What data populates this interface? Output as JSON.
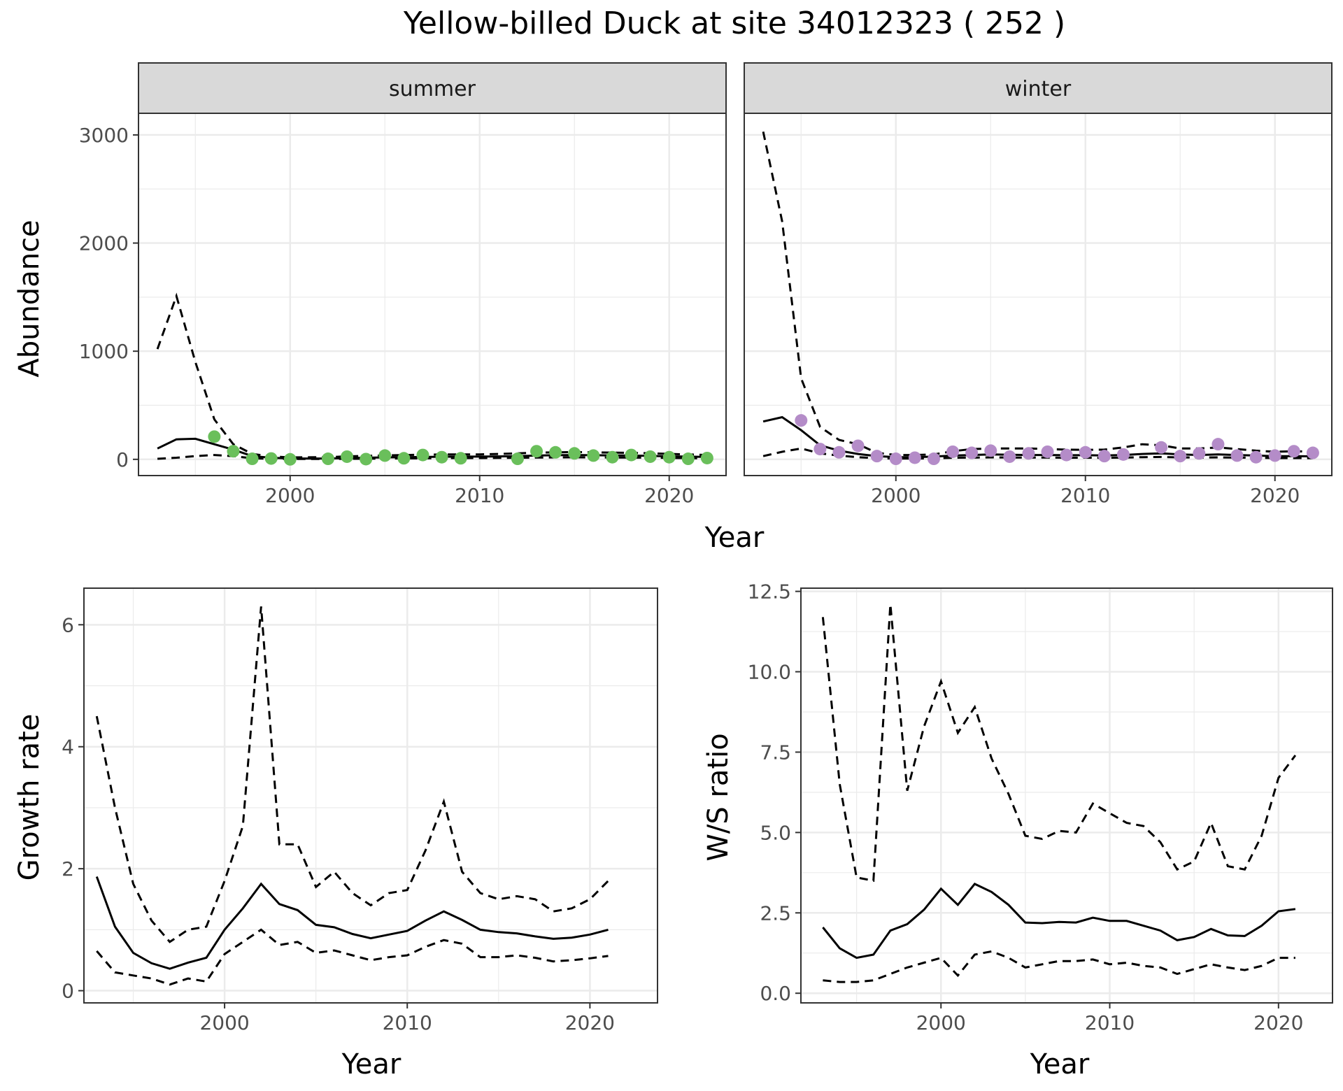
{
  "figure_title": "Yellow-billed Duck at site 34012323 ( 252 )",
  "colors": {
    "summer_points": "#6abf5b",
    "winter_points": "#b48cc8",
    "line": "#000000",
    "strip_fill": "#d9d9d9",
    "grid": "#ebebeb"
  },
  "chart_data": [
    {
      "id": "abundance-summer",
      "type": "line",
      "facet": "summer",
      "xlabel": "Year",
      "ylabel": "Abundance",
      "xlim": [
        1992,
        2023
      ],
      "ylim": [
        -150,
        3200
      ],
      "x_ticks": [
        2000,
        2010,
        2020
      ],
      "y_ticks": [
        0,
        1000,
        2000,
        3000
      ],
      "grid": true,
      "series": [
        {
          "role": "estimate",
          "style": "solid",
          "x": [
            1993,
            1994,
            1995,
            1996,
            1997,
            1998,
            1999,
            2000,
            2002,
            2003,
            2004,
            2005,
            2006,
            2007,
            2008,
            2009,
            2010,
            2011,
            2012,
            2013,
            2014,
            2015,
            2016,
            2017,
            2018,
            2019,
            2020,
            2021,
            2022
          ],
          "y": [
            100,
            185,
            190,
            140,
            90,
            30,
            15,
            8,
            8,
            12,
            15,
            18,
            20,
            22,
            24,
            25,
            25,
            27,
            30,
            35,
            38,
            40,
            38,
            36,
            35,
            32,
            28,
            25,
            22
          ]
        },
        {
          "role": "upper",
          "style": "dashed",
          "x": [
            1993,
            1994,
            1995,
            1996,
            1997,
            1998,
            1999,
            2000,
            2002,
            2003,
            2004,
            2005,
            2006,
            2007,
            2008,
            2009,
            2010,
            2011,
            2012,
            2013,
            2014,
            2015,
            2016,
            2017,
            2018,
            2019,
            2020,
            2021,
            2022
          ],
          "y": [
            1020,
            1510,
            900,
            370,
            140,
            50,
            28,
            18,
            20,
            28,
            32,
            36,
            40,
            42,
            45,
            46,
            46,
            50,
            55,
            62,
            65,
            68,
            65,
            62,
            60,
            56,
            50,
            45,
            40
          ]
        },
        {
          "role": "lower",
          "style": "dashed",
          "x": [
            1993,
            1994,
            1995,
            1996,
            1997,
            1998,
            1999,
            2000,
            2002,
            2003,
            2004,
            2005,
            2006,
            2007,
            2008,
            2009,
            2010,
            2011,
            2012,
            2013,
            2014,
            2015,
            2016,
            2017,
            2018,
            2019,
            2020,
            2021,
            2022
          ],
          "y": [
            5,
            15,
            30,
            40,
            30,
            10,
            5,
            3,
            3,
            5,
            6,
            8,
            9,
            10,
            11,
            12,
            12,
            13,
            14,
            16,
            18,
            19,
            18,
            17,
            16,
            15,
            13,
            11,
            10
          ]
        },
        {
          "role": "observed",
          "style": "points",
          "x": [
            1996,
            1997,
            1998,
            1999,
            2000,
            2002,
            2003,
            2004,
            2005,
            2006,
            2007,
            2008,
            2009,
            2012,
            2013,
            2014,
            2015,
            2016,
            2017,
            2018,
            2019,
            2020,
            2021,
            2022
          ],
          "y": [
            210,
            75,
            5,
            8,
            0,
            5,
            25,
            2,
            35,
            10,
            40,
            20,
            10,
            5,
            75,
            65,
            55,
            35,
            20,
            40,
            25,
            20,
            5,
            12
          ]
        }
      ]
    },
    {
      "id": "abundance-winter",
      "type": "line",
      "facet": "winter",
      "xlabel": "Year",
      "ylabel": "",
      "xlim": [
        1992,
        2023
      ],
      "ylim": [
        -150,
        3200
      ],
      "x_ticks": [
        2000,
        2010,
        2020
      ],
      "y_ticks": [
        0,
        1000,
        2000,
        3000
      ],
      "grid": true,
      "series": [
        {
          "role": "estimate",
          "style": "solid",
          "x": [
            1993,
            1994,
            1995,
            1996,
            1997,
            1998,
            1999,
            2000,
            2001,
            2002,
            2003,
            2004,
            2005,
            2006,
            2007,
            2008,
            2009,
            2010,
            2011,
            2012,
            2013,
            2014,
            2015,
            2016,
            2017,
            2018,
            2019,
            2020,
            2021,
            2022
          ],
          "y": [
            350,
            390,
            270,
            130,
            80,
            50,
            30,
            20,
            20,
            25,
            35,
            40,
            45,
            42,
            40,
            40,
            38,
            38,
            36,
            40,
            50,
            55,
            45,
            40,
            45,
            40,
            35,
            30,
            30,
            28
          ]
        },
        {
          "role": "upper",
          "style": "dashed",
          "x": [
            1993,
            1994,
            1995,
            1996,
            1997,
            1998,
            1999,
            2000,
            2001,
            2002,
            2003,
            2004,
            2005,
            2006,
            2007,
            2008,
            2009,
            2010,
            2011,
            2012,
            2013,
            2014,
            2015,
            2016,
            2017,
            2018,
            2019,
            2020,
            2021,
            2022
          ],
          "y": [
            3030,
            2200,
            750,
            300,
            180,
            140,
            60,
            40,
            40,
            45,
            75,
            95,
            100,
            100,
            100,
            95,
            90,
            88,
            90,
            110,
            140,
            130,
            100,
            100,
            110,
            95,
            80,
            70,
            75,
            70
          ]
        },
        {
          "role": "lower",
          "style": "dashed",
          "x": [
            1993,
            1994,
            1995,
            1996,
            1997,
            1998,
            1999,
            2000,
            2001,
            2002,
            2003,
            2004,
            2005,
            2006,
            2007,
            2008,
            2009,
            2010,
            2011,
            2012,
            2013,
            2014,
            2015,
            2016,
            2017,
            2018,
            2019,
            2020,
            2021,
            2022
          ],
          "y": [
            30,
            70,
            100,
            55,
            35,
            20,
            10,
            8,
            8,
            10,
            14,
            16,
            18,
            17,
            16,
            16,
            15,
            15,
            14,
            16,
            20,
            22,
            18,
            16,
            18,
            16,
            14,
            12,
            12,
            11
          ]
        },
        {
          "role": "observed",
          "style": "points",
          "x": [
            1995,
            1996,
            1997,
            1998,
            1999,
            2000,
            2001,
            2002,
            2003,
            2004,
            2005,
            2006,
            2007,
            2008,
            2009,
            2010,
            2011,
            2012,
            2014,
            2015,
            2016,
            2017,
            2018,
            2019,
            2020,
            2021,
            2022
          ],
          "y": [
            360,
            95,
            65,
            125,
            30,
            5,
            15,
            5,
            70,
            60,
            80,
            25,
            55,
            70,
            40,
            65,
            30,
            45,
            110,
            30,
            55,
            140,
            35,
            20,
            35,
            75,
            60
          ]
        }
      ]
    },
    {
      "id": "growth-rate",
      "type": "line",
      "xlabel": "Year",
      "ylabel": "Growth rate",
      "xlim": [
        1992.3,
        2023.7
      ],
      "ylim": [
        -0.2,
        6.6
      ],
      "x_ticks": [
        2000,
        2010,
        2020
      ],
      "y_ticks": [
        0,
        2,
        4,
        6
      ],
      "grid": true,
      "series": [
        {
          "role": "estimate",
          "style": "solid",
          "x": [
            1993,
            1994,
            1995,
            1996,
            1997,
            1998,
            1999,
            2000,
            2001,
            2002,
            2003,
            2004,
            2005,
            2006,
            2007,
            2008,
            2009,
            2010,
            2011,
            2012,
            2013,
            2014,
            2015,
            2016,
            2017,
            2018,
            2019,
            2020,
            2021
          ],
          "y": [
            1.87,
            1.05,
            0.62,
            0.45,
            0.36,
            0.46,
            0.54,
            1.0,
            1.35,
            1.75,
            1.42,
            1.32,
            1.08,
            1.04,
            0.93,
            0.86,
            0.92,
            0.98,
            1.15,
            1.3,
            1.16,
            1.0,
            0.96,
            0.94,
            0.89,
            0.85,
            0.87,
            0.92,
            1.0
          ]
        },
        {
          "role": "upper",
          "style": "dashed",
          "x": [
            1993,
            1994,
            1995,
            1996,
            1997,
            1998,
            1999,
            2000,
            2001,
            2002,
            2003,
            2004,
            2005,
            2006,
            2007,
            2008,
            2009,
            2010,
            2011,
            2012,
            2013,
            2014,
            2015,
            2016,
            2017,
            2018,
            2019,
            2020,
            2021
          ],
          "y": [
            4.5,
            3.0,
            1.75,
            1.15,
            0.8,
            1.0,
            1.05,
            1.8,
            2.7,
            6.3,
            2.4,
            2.4,
            1.7,
            1.95,
            1.6,
            1.4,
            1.6,
            1.65,
            2.3,
            3.1,
            1.95,
            1.6,
            1.5,
            1.55,
            1.5,
            1.3,
            1.35,
            1.5,
            1.8
          ]
        },
        {
          "role": "lower",
          "style": "dashed",
          "x": [
            1993,
            1994,
            1995,
            1996,
            1997,
            1998,
            1999,
            2000,
            2001,
            2002,
            2003,
            2004,
            2005,
            2006,
            2007,
            2008,
            2009,
            2010,
            2011,
            2012,
            2013,
            2014,
            2015,
            2016,
            2017,
            2018,
            2019,
            2020,
            2021
          ],
          "y": [
            0.65,
            0.3,
            0.25,
            0.2,
            0.1,
            0.2,
            0.15,
            0.6,
            0.8,
            1.0,
            0.75,
            0.8,
            0.62,
            0.66,
            0.58,
            0.5,
            0.55,
            0.58,
            0.72,
            0.83,
            0.77,
            0.55,
            0.55,
            0.58,
            0.54,
            0.48,
            0.5,
            0.53,
            0.57
          ]
        }
      ]
    },
    {
      "id": "ws-ratio",
      "type": "line",
      "xlabel": "Year",
      "ylabel": "W/S ratio",
      "xlim": [
        1991.7,
        2023.2
      ],
      "ylim": [
        -0.3,
        12.6
      ],
      "x_ticks": [
        2000,
        2010,
        2020
      ],
      "y_ticks": [
        0.0,
        2.5,
        5.0,
        7.5,
        10.0,
        12.5
      ],
      "y_tick_labels": [
        "0.0",
        "2.5",
        "5.0",
        "7.5",
        "10.0",
        "12.5"
      ],
      "grid": true,
      "series": [
        {
          "role": "estimate",
          "style": "solid",
          "x": [
            1993,
            1994,
            1995,
            1996,
            1997,
            1998,
            1999,
            2000,
            2001,
            2002,
            2003,
            2004,
            2005,
            2006,
            2007,
            2008,
            2009,
            2010,
            2011,
            2012,
            2013,
            2014,
            2015,
            2016,
            2017,
            2018,
            2019,
            2020,
            2021
          ],
          "y": [
            2.05,
            1.4,
            1.1,
            1.2,
            1.95,
            2.15,
            2.6,
            3.25,
            2.75,
            3.4,
            3.15,
            2.75,
            2.2,
            2.18,
            2.22,
            2.2,
            2.35,
            2.25,
            2.25,
            2.1,
            1.95,
            1.65,
            1.75,
            2.0,
            1.8,
            1.78,
            2.1,
            2.55,
            2.62
          ]
        },
        {
          "role": "upper",
          "style": "dashed",
          "x": [
            1993,
            1994,
            1995,
            1996,
            1997,
            1998,
            1999,
            2000,
            2001,
            2002,
            2003,
            2004,
            2005,
            2006,
            2007,
            2008,
            2009,
            2010,
            2011,
            2012,
            2013,
            2014,
            2015,
            2016,
            2017,
            2018,
            2019,
            2020,
            2021
          ],
          "y": [
            11.7,
            6.5,
            3.6,
            3.5,
            12.1,
            6.3,
            8.3,
            9.7,
            8.1,
            8.9,
            7.3,
            6.2,
            4.9,
            4.8,
            5.05,
            5.0,
            5.9,
            5.6,
            5.3,
            5.2,
            4.7,
            3.85,
            4.1,
            5.3,
            3.95,
            3.85,
            4.9,
            6.7,
            7.4
          ]
        },
        {
          "role": "lower",
          "style": "dashed",
          "x": [
            1993,
            1994,
            1995,
            1996,
            1997,
            1998,
            1999,
            2000,
            2001,
            2002,
            2003,
            2004,
            2005,
            2006,
            2007,
            2008,
            2009,
            2010,
            2011,
            2012,
            2013,
            2014,
            2015,
            2016,
            2017,
            2018,
            2019,
            2020,
            2021
          ],
          "y": [
            0.4,
            0.35,
            0.35,
            0.4,
            0.6,
            0.8,
            0.95,
            1.1,
            0.55,
            1.2,
            1.3,
            1.1,
            0.8,
            0.9,
            1.0,
            1.0,
            1.05,
            0.9,
            0.95,
            0.85,
            0.8,
            0.6,
            0.75,
            0.9,
            0.8,
            0.72,
            0.85,
            1.1,
            1.1
          ]
        }
      ]
    }
  ],
  "facets": {
    "summer": "summer",
    "winter": "winter"
  }
}
